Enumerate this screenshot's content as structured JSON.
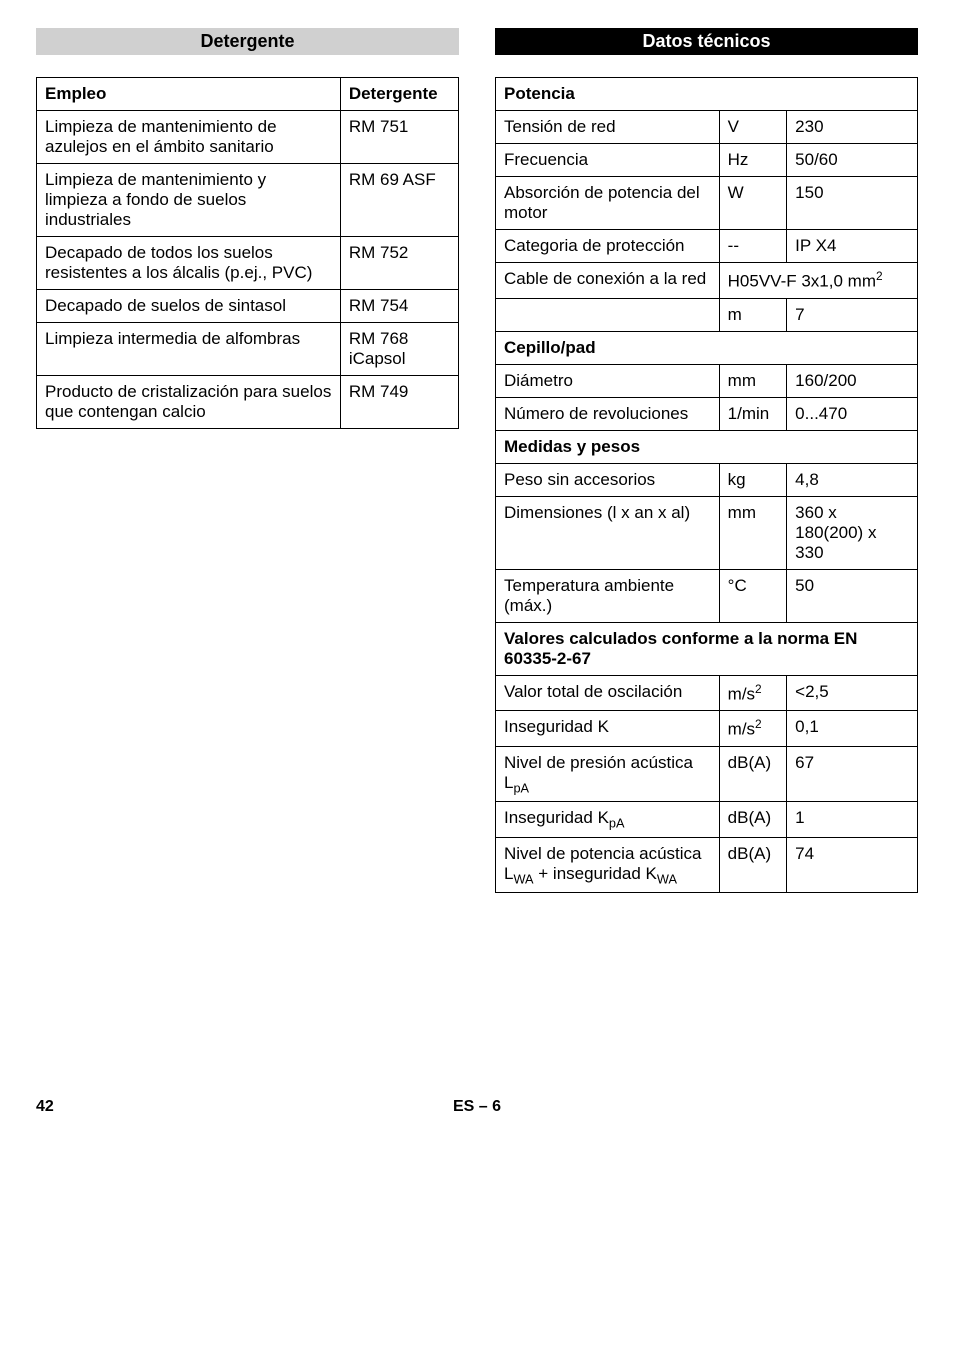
{
  "headers": {
    "left": "Detergente",
    "right": "Datos técnicos"
  },
  "detergente": {
    "col_empleo": "Empleo",
    "col_det": "Detergente",
    "rows": [
      {
        "use": "Limpieza de mantenimiento de azulejos en el ámbito sanitario",
        "prod": "RM 751"
      },
      {
        "use": "Limpieza de mantenimiento y limpieza a fondo de suelos industriales",
        "prod": "RM 69 ASF"
      },
      {
        "use": "Decapado de todos los suelos resistentes a los álcalis (p.ej., PVC)",
        "prod": "RM 752"
      },
      {
        "use": "Decapado de suelos de sintasol",
        "prod": "RM 754"
      },
      {
        "use": "Limpieza intermedia de alfombras",
        "prod": "RM 768 iCapsol"
      },
      {
        "use": "Producto de cristalización para suelos que contengan calcio",
        "prod": "RM 749"
      }
    ]
  },
  "specs": {
    "section_potencia": "Potencia",
    "tension": {
      "label": "Tensión de red",
      "unit": "V",
      "val": "230"
    },
    "frecuencia": {
      "label": "Frecuencia",
      "unit": "Hz",
      "val": "50/60"
    },
    "absorcion": {
      "label": "Absorción de potencia del motor",
      "unit": "W",
      "val": "150"
    },
    "categoria": {
      "label": "Categoria de protección",
      "unit": "--",
      "val": "IP X4"
    },
    "cable": {
      "label": "Cable de conexión a la red",
      "val": "H05VV-F 3x1,0 mm"
    },
    "cable_len": {
      "unit": "m",
      "val": "7"
    },
    "section_cepillo": "Cepillo/pad",
    "diametro": {
      "label": "Diámetro",
      "unit": "mm",
      "val": "160/200"
    },
    "revol": {
      "label": "Número de revoluciones",
      "unit": "1/min",
      "val": "0...470"
    },
    "section_medidas": "Medidas y pesos",
    "peso": {
      "label": "Peso sin accesorios",
      "unit": "kg",
      "val": "4,8"
    },
    "dim": {
      "label": "Dimensiones (l x an x al)",
      "unit": "mm",
      "val": "360 x 180(200) x 330"
    },
    "temp": {
      "label": "Temperatura ambiente (máx.)",
      "unit": "°C",
      "val": "50"
    },
    "section_valores": "Valores calculados conforme a la norma EN 60335-2-67",
    "oscila": {
      "label": "Valor total de oscilación",
      "unit": "m/s",
      "val": "<2,5"
    },
    "inseg_k": {
      "label": "Inseguridad K",
      "unit": "m/s",
      "val": "0,1"
    },
    "presion": {
      "label_pre": "Nivel de presión acústica L",
      "unit": "dB(A)",
      "val": "67"
    },
    "inseg_kpa": {
      "label_pre": "Inseguridad K",
      "unit": "dB(A)",
      "val": "1"
    },
    "potencia_ac": {
      "label_pre": "Nivel de potencia acústica L",
      "label_mid": " + inseguridad K",
      "unit": "dB(A)",
      "val": "74"
    }
  },
  "footer": {
    "page": "42",
    "center": "ES – 6"
  }
}
